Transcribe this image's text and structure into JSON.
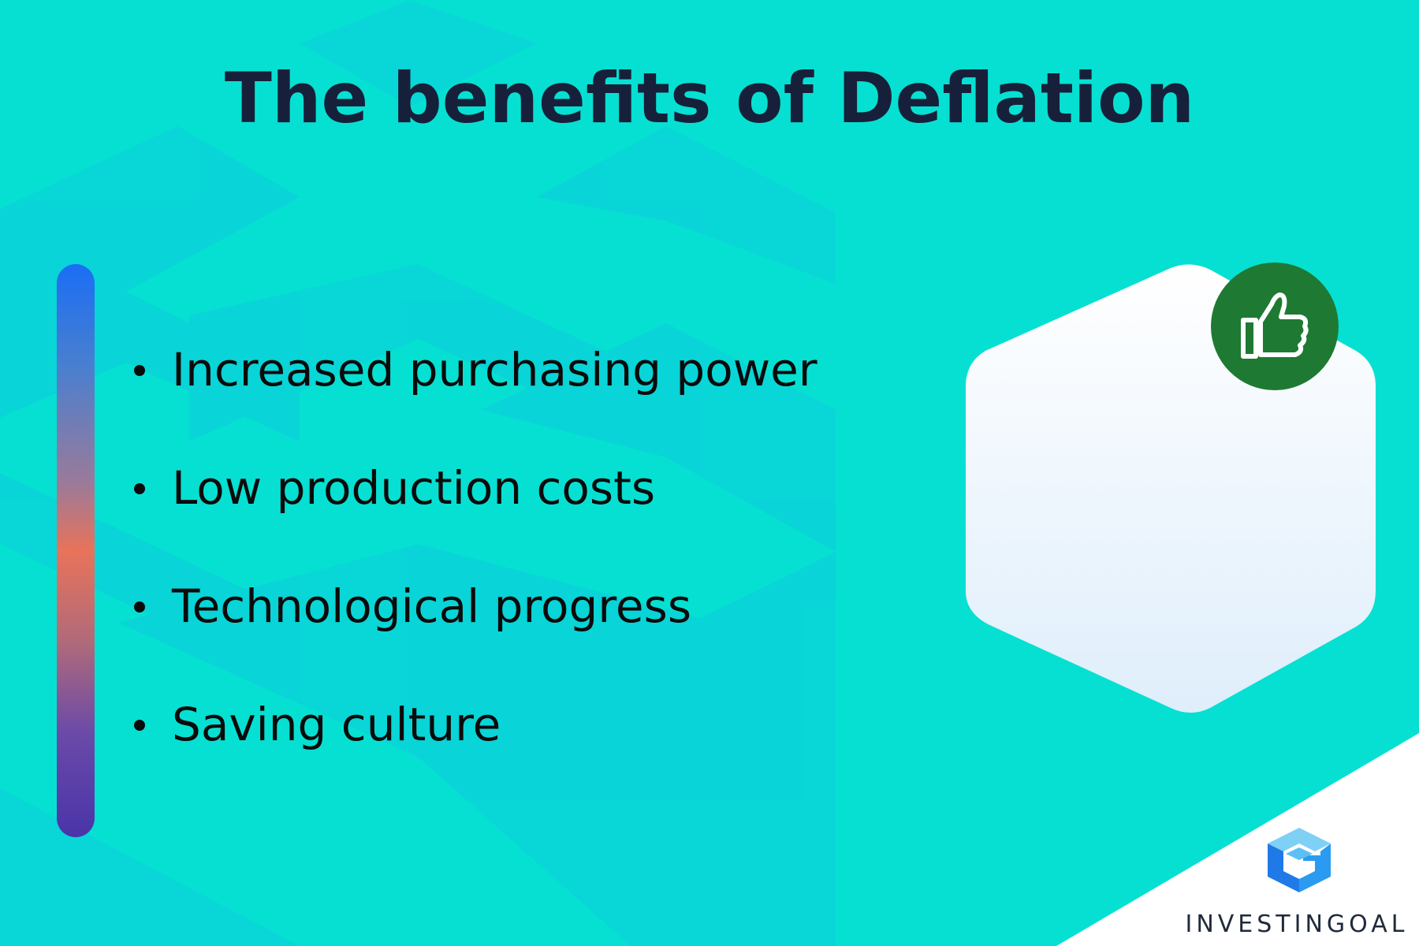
{
  "page": {
    "title": "The benefits of Deflation"
  },
  "benefits": [
    {
      "label": "Increased purchasing power"
    },
    {
      "label": "Low production costs"
    },
    {
      "label": "Technological progress"
    },
    {
      "label": "Saving culture"
    }
  ],
  "badge": {
    "icon": "thumbs-up-icon"
  },
  "logo": {
    "text": "INVESTINGOAL"
  },
  "colors": {
    "background": "#06e0d2",
    "title": "#17203a",
    "badge": "#1e7a33",
    "arrow": "#d9363e",
    "coins": "#3a7fd0"
  }
}
